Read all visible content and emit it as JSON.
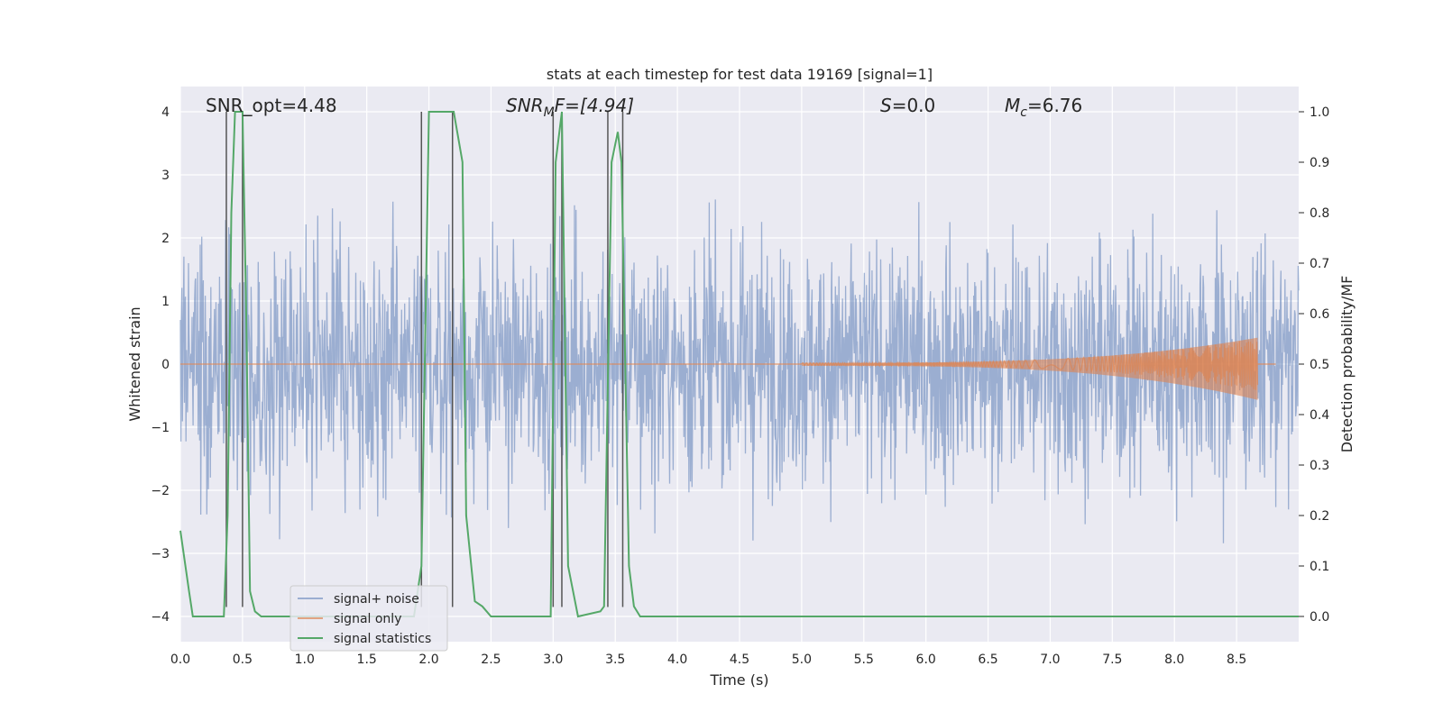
{
  "chart_data": {
    "type": "line",
    "title": "stats at each timestep for test data 19169 [signal=1]",
    "xlabel": "Time (s)",
    "ylabel": "Whitened strain",
    "ylabel_right": "Detection probability/MF",
    "xlim": [
      0.0,
      9.0
    ],
    "ylim": [
      -4.4,
      4.4
    ],
    "ylim_right": [
      -0.05,
      1.05
    ],
    "x_ticks": [
      "0.0",
      "0.5",
      "1.0",
      "1.5",
      "2.0",
      "2.5",
      "3.0",
      "3.5",
      "4.0",
      "4.5",
      "5.0",
      "5.5",
      "6.0",
      "6.5",
      "7.0",
      "7.5",
      "8.0",
      "8.5"
    ],
    "x_tick_values": [
      0.0,
      0.5,
      1.0,
      1.5,
      2.0,
      2.5,
      3.0,
      3.5,
      4.0,
      4.5,
      5.0,
      5.5,
      6.0,
      6.5,
      7.0,
      7.5,
      8.0,
      8.5
    ],
    "y_ticks": [
      "−4",
      "−3",
      "−2",
      "−1",
      "0",
      "1",
      "2",
      "3",
      "4"
    ],
    "y_tick_values": [
      -4,
      -3,
      -2,
      -1,
      0,
      1,
      2,
      3,
      4
    ],
    "y_right_ticks": [
      "0.0",
      "0.1",
      "0.2",
      "0.3",
      "0.4",
      "0.5",
      "0.6",
      "0.7",
      "0.8",
      "0.9",
      "1.0"
    ],
    "y_right_tick_values": [
      0.0,
      0.1,
      0.2,
      0.3,
      0.4,
      0.5,
      0.6,
      0.7,
      0.8,
      0.9,
      1.0
    ],
    "grid": true,
    "legend_placement": "lower-left",
    "annotations": {
      "snr_opt": "SNR_opt=4.48",
      "snr_mf_main": "SNR",
      "snr_mf_sub": "M",
      "snr_mf_rest": "F=[4.94]",
      "s_main": "S",
      "s_rest": "=0.0",
      "mc_main": "M",
      "mc_sub": "c",
      "mc_rest": "=6.76"
    },
    "series": [
      {
        "name": "signal+ noise",
        "color": "#4c72b0",
        "description_shown": "dense noise band",
        "envelope_x": [
          0.0,
          9.0
        ],
        "typical_range": [
          -2.2,
          2.6
        ],
        "peak_range": [
          -3.9,
          4.0
        ]
      },
      {
        "name": "signal only",
        "color": "#dd8452",
        "chirp_start": 5.0,
        "chirp_end": 8.67,
        "chirp_peak_amplitude": 0.4
      },
      {
        "name": "signal statistics",
        "color": "#55a868",
        "axis": "right",
        "x": [
          0.0,
          0.07,
          0.1,
          0.17,
          0.3,
          0.35,
          0.38,
          0.41,
          0.44,
          0.5,
          0.53,
          0.56,
          0.6,
          0.65,
          1.0,
          1.5,
          1.8,
          1.88,
          1.94,
          2.0,
          2.2,
          2.27,
          2.3,
          2.37,
          2.43,
          2.5,
          2.9,
          2.98,
          3.02,
          3.07,
          3.12,
          3.2,
          3.38,
          3.41,
          3.47,
          3.52,
          3.55,
          3.61,
          3.65,
          3.7,
          4.0,
          5.0,
          6.0,
          7.0,
          8.0,
          9.0
        ],
        "values": [
          0.17,
          0.05,
          0.0,
          0.0,
          0.0,
          0.0,
          0.2,
          0.8,
          1.0,
          1.0,
          0.6,
          0.05,
          0.01,
          0.0,
          0.0,
          0.0,
          0.0,
          0.0,
          0.1,
          1.0,
          1.0,
          0.9,
          0.2,
          0.03,
          0.02,
          0.0,
          0.0,
          0.0,
          0.9,
          1.0,
          0.1,
          0.0,
          0.01,
          0.02,
          0.9,
          0.96,
          0.9,
          0.1,
          0.02,
          0.0,
          0.0,
          0.0,
          0.0,
          0.0,
          0.0,
          0.0
        ]
      }
    ],
    "vertical_lines_x": [
      0.37,
      0.5,
      1.94,
      2.19,
      3.0,
      3.07,
      3.44,
      3.56
    ],
    "vertical_lines_range": [
      -3.85,
      4.0
    ]
  }
}
